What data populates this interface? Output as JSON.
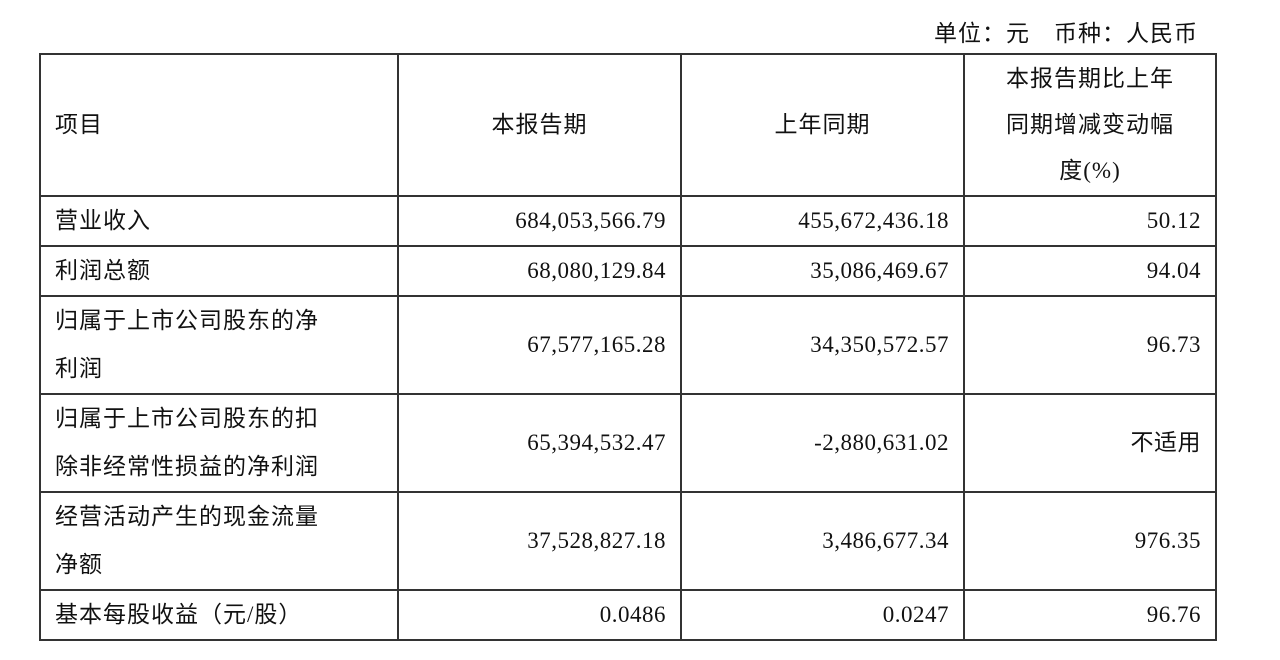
{
  "unit_line": "单位：元　币种：人民币",
  "headers": [
    "项目",
    "本报告期",
    "上年同期",
    "本报告期比上年同期增减变动幅度(%)"
  ],
  "header_last_lines": [
    "本报告期比上年",
    "同期增减变动幅",
    "度(%)"
  ],
  "rows": [
    {
      "item_lines": [
        "营业收入"
      ],
      "current": "684,053,566.79",
      "prior": "455,672,436.18",
      "change": "50.12"
    },
    {
      "item_lines": [
        "利润总额"
      ],
      "current": "68,080,129.84",
      "prior": "35,086,469.67",
      "change": "94.04"
    },
    {
      "item_lines": [
        "归属于上市公司股东的净",
        "利润"
      ],
      "current": "67,577,165.28",
      "prior": "34,350,572.57",
      "change": "96.73"
    },
    {
      "item_lines": [
        "归属于上市公司股东的扣",
        "除非经常性损益的净利润"
      ],
      "current": "65,394,532.47",
      "prior": "-2,880,631.02",
      "change": "不适用"
    },
    {
      "item_lines": [
        "经营活动产生的现金流量",
        "净额"
      ],
      "current": "37,528,827.18",
      "prior": "3,486,677.34",
      "change": "976.35"
    },
    {
      "item_lines": [
        "基本每股收益（元/股）"
      ],
      "current": "0.0486",
      "prior": "0.0247",
      "change": "96.76"
    }
  ]
}
